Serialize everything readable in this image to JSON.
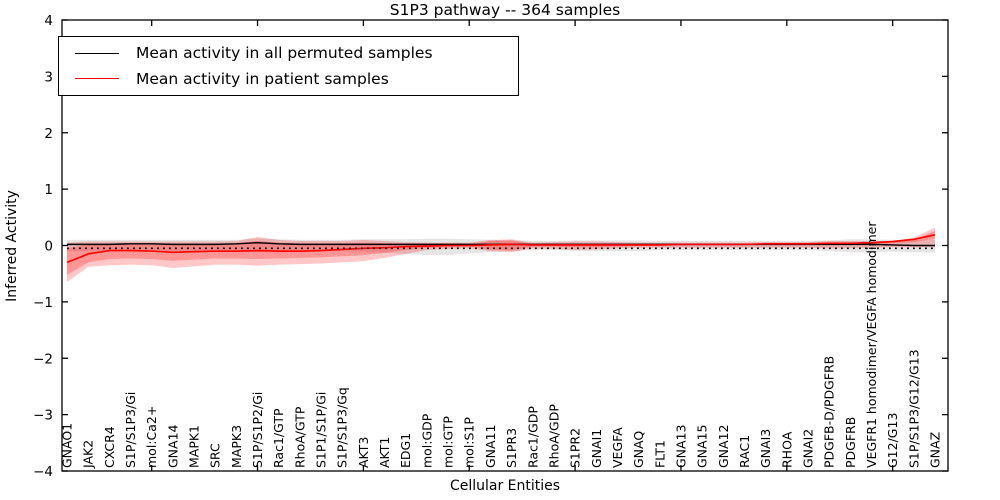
{
  "chart_data": {
    "type": "line",
    "title": "S1P3 pathway -- 364 samples",
    "xlabel": "Cellular Entities",
    "ylabel": "Inferred Activity",
    "ylim": [
      -4,
      4
    ],
    "y_ticks": [
      4,
      3,
      2,
      1,
      0,
      -1,
      -2,
      -3,
      -4
    ],
    "x_tick_indices": [
      4,
      9,
      14,
      19,
      24,
      29,
      34,
      39
    ],
    "grid": false,
    "legend_position": "upper left",
    "legend": [
      "Mean activity in all permuted samples",
      "Mean activity in patient samples"
    ],
    "categories": [
      "GNAO1",
      "JAK2",
      "CXCR4",
      "S1P/S1P3/Gi",
      "mol:Ca2+",
      "GNA14",
      "MAPK1",
      "SRC",
      "MAPK3",
      "S1P/S1P2/Gi",
      "Rac1/GTP",
      "RhoA/GTP",
      "S1P1/S1P/Gi",
      "S1P/S1P3/Gq",
      "AKT3",
      "AKT1",
      "EDG1",
      "mol:GDP",
      "mol:GTP",
      "mol:S1P",
      "GNA11",
      "S1PR3",
      "Rac1/GDP",
      "RhoA/GDP",
      "S1PR2",
      "GNAI1",
      "VEGFA",
      "GNAQ",
      "FLT1",
      "GNA13",
      "GNA15",
      "GNA12",
      "RAC1",
      "GNAI3",
      "RHOA",
      "GNAI2",
      "PDGFB-D/PDGFRB",
      "PDGFRB",
      "VEGFR1 homodimer/VEGFA homodimer",
      "G12/G13",
      "S1P/S1P3/G12/G13",
      "GNAZ"
    ],
    "series": [
      {
        "name": "Mean activity in all permuted samples",
        "color": "#000000",
        "values": [
          0.02,
          0.02,
          0.02,
          0.03,
          0.03,
          0.02,
          0.02,
          0.02,
          0.03,
          0.05,
          0.03,
          0.02,
          0.02,
          0.02,
          0.02,
          0.02,
          0.02,
          0.02,
          0.02,
          0.02,
          0.02,
          0.02,
          0.02,
          0.02,
          0.02,
          0.02,
          0.02,
          0.02,
          0.02,
          0.02,
          0.02,
          0.02,
          0.02,
          0.02,
          0.02,
          0.02,
          0.02,
          0.02,
          0.02,
          0.01,
          0.0,
          0.0
        ]
      },
      {
        "name": "Mean activity in patient samples",
        "color": "#ff0000",
        "values": [
          -0.3,
          -0.15,
          -0.09,
          -0.09,
          -0.1,
          -0.12,
          -0.11,
          -0.1,
          -0.1,
          -0.09,
          -0.1,
          -0.1,
          -0.09,
          -0.07,
          -0.05,
          -0.04,
          -0.02,
          -0.01,
          0.0,
          0.0,
          0.01,
          0.02,
          0.01,
          0.01,
          0.01,
          0.01,
          0.01,
          0.01,
          0.01,
          0.02,
          0.02,
          0.02,
          0.02,
          0.03,
          0.03,
          0.03,
          0.04,
          0.04,
          0.05,
          0.07,
          0.11,
          0.19
        ]
      }
    ],
    "bands": [
      {
        "name": "permuted-range",
        "color": "#000000",
        "opacity": 0.1,
        "upper": [
          0.1,
          0.1,
          0.1,
          0.1,
          0.1,
          0.1,
          0.1,
          0.1,
          0.1,
          0.13,
          0.11,
          0.1,
          0.1,
          0.1,
          0.11,
          0.11,
          0.11,
          0.12,
          0.12,
          0.11,
          0.1,
          0.09,
          0.08,
          0.08,
          0.09,
          0.09,
          0.09,
          0.09,
          0.08,
          0.08,
          0.08,
          0.08,
          0.08,
          0.08,
          0.08,
          0.08,
          0.09,
          0.11,
          0.11,
          0.1,
          0.1,
          0.1
        ],
        "lower": [
          -0.1,
          -0.1,
          -0.1,
          -0.1,
          -0.1,
          -0.1,
          -0.1,
          -0.1,
          -0.1,
          -0.12,
          -0.1,
          -0.1,
          -0.1,
          -0.1,
          -0.11,
          -0.13,
          -0.15,
          -0.17,
          -0.17,
          -0.14,
          -0.12,
          -0.1,
          -0.08,
          -0.08,
          -0.1,
          -0.1,
          -0.1,
          -0.1,
          -0.08,
          -0.08,
          -0.08,
          -0.08,
          -0.08,
          -0.08,
          -0.08,
          -0.08,
          -0.1,
          -0.12,
          -0.12,
          -0.11,
          -0.12,
          -0.13
        ]
      },
      {
        "name": "patient-range-outer",
        "color": "#ff0000",
        "opacity": 0.22,
        "upper": [
          0.05,
          0.07,
          0.07,
          0.07,
          0.07,
          0.07,
          0.07,
          0.07,
          0.08,
          0.15,
          0.1,
          0.08,
          0.08,
          0.08,
          0.1,
          0.08,
          0.06,
          0.05,
          0.05,
          0.05,
          0.1,
          0.11,
          0.05,
          0.06,
          0.07,
          0.07,
          0.06,
          0.05,
          0.05,
          0.05,
          0.05,
          0.05,
          0.05,
          0.06,
          0.06,
          0.06,
          0.08,
          0.08,
          0.08,
          0.08,
          0.14,
          0.32
        ],
        "lower": [
          -0.65,
          -0.38,
          -0.35,
          -0.34,
          -0.35,
          -0.4,
          -0.37,
          -0.34,
          -0.34,
          -0.36,
          -0.34,
          -0.33,
          -0.32,
          -0.3,
          -0.28,
          -0.22,
          -0.15,
          -0.08,
          -0.06,
          -0.05,
          -0.1,
          -0.12,
          -0.05,
          -0.06,
          -0.08,
          -0.07,
          -0.05,
          -0.04,
          -0.04,
          -0.04,
          -0.04,
          -0.04,
          -0.04,
          -0.04,
          -0.04,
          -0.04,
          -0.05,
          -0.05,
          -0.04,
          -0.03,
          -0.03,
          -0.03
        ]
      },
      {
        "name": "patient-range-inner",
        "color": "#ff0000",
        "opacity": 0.25,
        "upper": [
          -0.05,
          0.02,
          0.03,
          0.03,
          0.03,
          0.03,
          0.03,
          0.03,
          0.04,
          0.08,
          0.05,
          0.04,
          0.04,
          0.04,
          0.05,
          0.04,
          0.03,
          0.02,
          0.02,
          0.02,
          0.08,
          0.09,
          0.02,
          0.02,
          0.03,
          0.03,
          0.03,
          0.02,
          0.02,
          0.03,
          0.03,
          0.03,
          0.03,
          0.04,
          0.04,
          0.04,
          0.05,
          0.05,
          0.06,
          0.06,
          0.1,
          0.26
        ],
        "lower": [
          -0.52,
          -0.3,
          -0.24,
          -0.23,
          -0.24,
          -0.27,
          -0.25,
          -0.23,
          -0.23,
          -0.24,
          -0.23,
          -0.22,
          -0.21,
          -0.19,
          -0.17,
          -0.13,
          -0.08,
          -0.04,
          -0.03,
          -0.02,
          -0.07,
          -0.09,
          -0.02,
          -0.02,
          -0.03,
          -0.03,
          -0.02,
          -0.01,
          -0.01,
          0.0,
          0.0,
          0.0,
          0.0,
          0.01,
          0.01,
          0.01,
          0.02,
          0.02,
          0.03,
          0.04,
          0.06,
          0.12
        ]
      }
    ],
    "zero_line": {
      "value": -0.05,
      "style": "dotted",
      "color": "#000000"
    },
    "colors": {
      "permuted": "#000000",
      "patient": "#ff0000",
      "frame": "#000000"
    }
  }
}
